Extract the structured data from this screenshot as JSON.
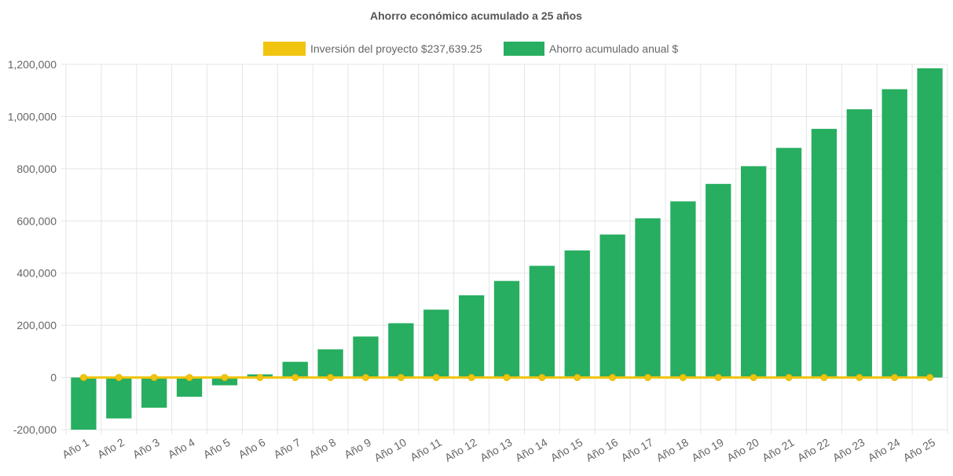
{
  "chart_data": {
    "type": "bar",
    "title": "Ahorro económico acumulado a 25 años",
    "categories": [
      "Año 1",
      "Año 2",
      "Año 3",
      "Año 4",
      "Año 5",
      "Año 6",
      "Año 7",
      "Año 8",
      "Año 9",
      "Año 10",
      "Año 11",
      "Año 12",
      "Año 13",
      "Año 14",
      "Año 15",
      "Año 16",
      "Año 17",
      "Año 18",
      "Año 19",
      "Año 20",
      "Año 21",
      "Año 22",
      "Año 23",
      "Año 24",
      "Año 25"
    ],
    "series": [
      {
        "name": "Inversión del proyecto $237,639.25",
        "type": "line",
        "color": "#f1c40f",
        "values": [
          0,
          0,
          0,
          0,
          0,
          0,
          0,
          0,
          0,
          0,
          0,
          0,
          0,
          0,
          0,
          0,
          0,
          0,
          0,
          0,
          0,
          0,
          0,
          0,
          0
        ]
      },
      {
        "name": "Ahorro acumulado anual $",
        "type": "bar",
        "color": "#27ae60",
        "values": [
          -200000,
          -157000,
          -116000,
          -74000,
          -30000,
          12000,
          60000,
          108000,
          157000,
          208000,
          260000,
          315000,
          370000,
          428000,
          487000,
          548000,
          610000,
          675000,
          742000,
          810000,
          880000,
          953000,
          1028000,
          1105000,
          1185000
        ]
      }
    ],
    "yticks": [
      "1,200,000",
      "1,000,000",
      "800,000",
      "600,000",
      "400,000",
      "200,000",
      "0",
      "-200,000"
    ],
    "ylim": [
      -200000,
      1200000
    ],
    "grid": true,
    "legend_position": "top-center"
  }
}
